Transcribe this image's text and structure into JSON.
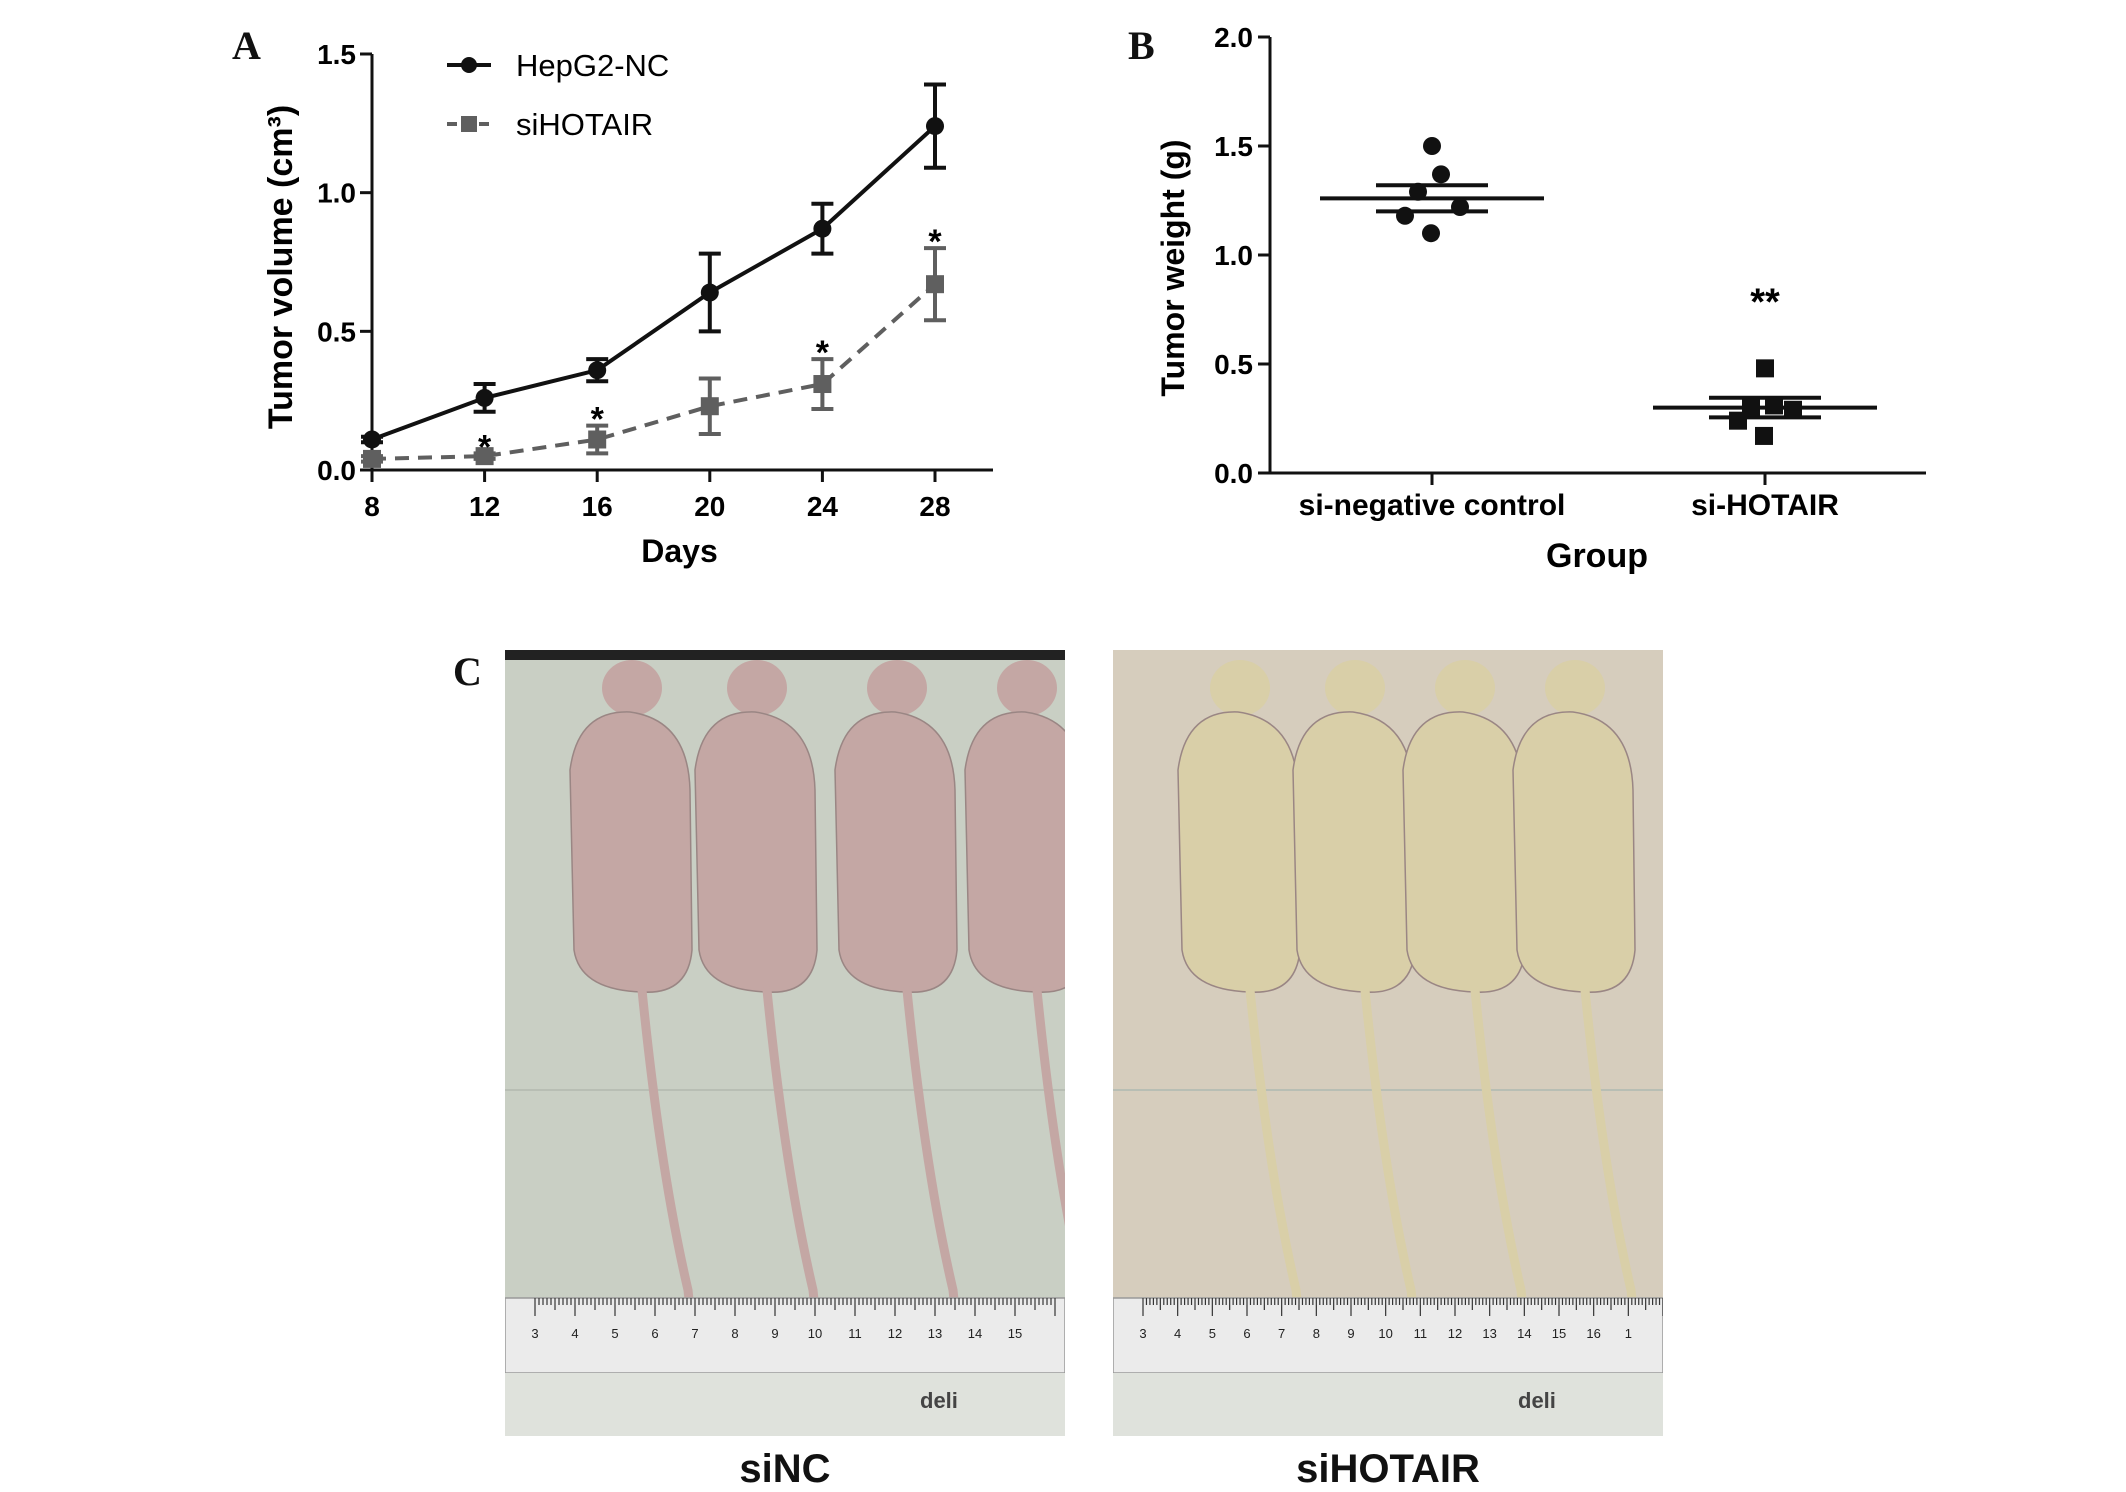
{
  "panels": {
    "a_letter": "A",
    "b_letter": "B",
    "c_letter": "C"
  },
  "chart_data": [
    {
      "type": "line",
      "panel": "A",
      "xlabel": "Days",
      "ylabel": "Tumor volume (cm³)",
      "x": [
        8,
        12,
        16,
        20,
        24,
        28
      ],
      "xlim": [
        8,
        28
      ],
      "xticks": [
        "8",
        "12",
        "16",
        "20",
        "24",
        "28"
      ],
      "ylim": [
        0,
        1.5
      ],
      "yticks": [
        "0.0",
        "0.5",
        "1.0",
        "1.5"
      ],
      "legend_position": "top-left",
      "series": [
        {
          "name": "HepG2-NC",
          "values": [
            0.11,
            0.26,
            0.36,
            0.64,
            0.87,
            1.24
          ],
          "errors": [
            0.01,
            0.05,
            0.04,
            0.14,
            0.09,
            0.15
          ],
          "marker": "circle",
          "line": "solid",
          "color": "#111111"
        },
        {
          "name": "siHOTAIR",
          "values": [
            0.04,
            0.05,
            0.11,
            0.23,
            0.31,
            0.67
          ],
          "errors": [
            0.01,
            0.01,
            0.05,
            0.1,
            0.09,
            0.13
          ],
          "marker": "square",
          "line": "dashed",
          "color": "#5f5f5f"
        }
      ],
      "annotations": [
        {
          "x": 12,
          "y": 0.06,
          "text": "*"
        },
        {
          "x": 16,
          "y": 0.16,
          "text": "*"
        },
        {
          "x": 24,
          "y": 0.4,
          "text": "*"
        },
        {
          "x": 28,
          "y": 0.8,
          "text": "*"
        }
      ]
    },
    {
      "type": "scatter",
      "panel": "B",
      "xlabel": "Group",
      "ylabel": "Tumor weight (g)",
      "categories": [
        "si-negative control",
        "si-HOTAIR"
      ],
      "ylim": [
        0,
        2.0
      ],
      "yticks": [
        "0.0",
        "0.5",
        "1.0",
        "1.5",
        "2.0"
      ],
      "groups": [
        {
          "name": "si-negative control",
          "marker": "circle",
          "points": [
            1.5,
            1.37,
            1.29,
            1.22,
            1.18,
            1.1
          ],
          "mean": 1.26,
          "sem": 0.06
        },
        {
          "name": "si-HOTAIR",
          "marker": "square",
          "points": [
            0.48,
            0.31,
            0.3,
            0.29,
            0.24,
            0.17
          ],
          "mean": 0.3,
          "sem": 0.045
        }
      ],
      "annotations": [
        {
          "category": "si-HOTAIR",
          "y": 0.8,
          "text": "**"
        }
      ]
    }
  ],
  "photos": {
    "left_label": "siNC",
    "right_label": "siHOTAIR",
    "left_ruler_ticks": [
      "3",
      "4",
      "5",
      "6",
      "7",
      "8",
      "9",
      "10",
      "11",
      "12",
      "13",
      "14",
      "15"
    ],
    "right_ruler_ticks": [
      "3",
      "4",
      "5",
      "6",
      "7",
      "8",
      "9",
      "10",
      "11",
      "12",
      "13",
      "14",
      "15",
      "16",
      "1"
    ],
    "ruler_brand": "deli",
    "left_bg": "#c9cfc4",
    "right_bg": "#d6cdbd",
    "left_mouse_color": "#c4a7a4",
    "right_mouse_color": "#d9cfa8"
  }
}
